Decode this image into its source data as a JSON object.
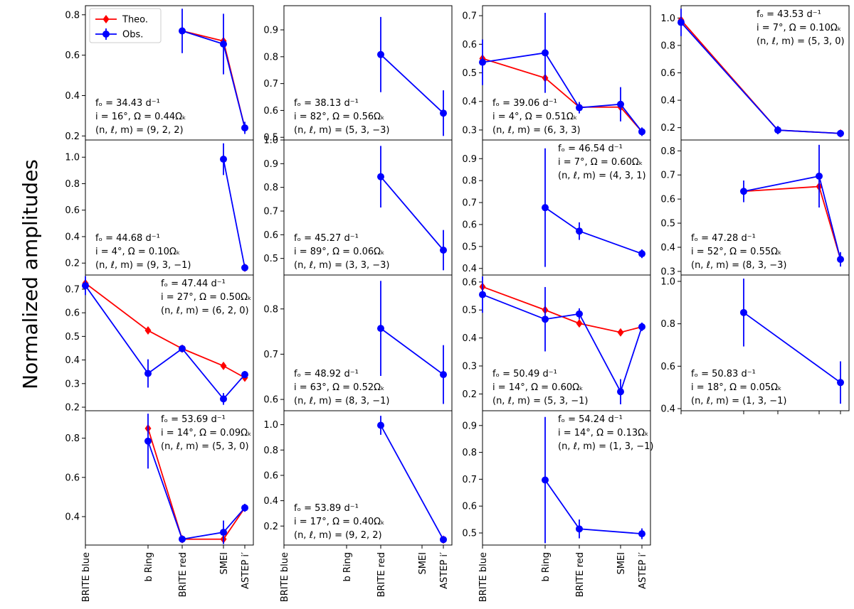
{
  "figure": {
    "ylabel": "Normalized amplitudes",
    "filters": [
      "BRITE blue",
      "b Ring",
      "BRITE red",
      "SMEI",
      "ASTEP i′"
    ],
    "legend": [
      {
        "label": "Theo.",
        "color": "#ff0000"
      },
      {
        "label": "Obs.",
        "color": "#0000ff"
      }
    ]
  },
  "chart_data": [
    {
      "type": "line",
      "annotation": [
        "fₒ = 34.43 d⁻¹",
        "i = 16°, Ω = 0.44Ωₖ",
        "(n, ℓ, m) = (9, 2, 2)"
      ],
      "ylim": [
        0.18,
        0.845
      ],
      "yticks": [
        0.2,
        0.4,
        0.6,
        0.8
      ],
      "ytick_labels": [
        "0.2",
        "0.4",
        "0.6",
        "0.8"
      ],
      "theo": [
        null,
        null,
        0.72,
        0.67,
        0.24
      ],
      "obs": [
        null,
        null,
        0.72,
        0.655,
        0.24
      ],
      "err": [
        null,
        null,
        0.11,
        0.15,
        0.03
      ]
    },
    {
      "type": "line",
      "annotation": [
        "fₒ = 38.13 d⁻¹",
        "i = 82°, Ω = 0.56Ωₖ",
        "(n, ℓ, m) = (5, 3, −3)"
      ],
      "ylim": [
        0.49,
        0.99
      ],
      "yticks": [
        0.5,
        0.6,
        0.7,
        0.8,
        0.9
      ],
      "ytick_labels": [
        "0.5",
        "0.6",
        "0.7",
        "0.8",
        "0.9"
      ],
      "theo": [
        null,
        null,
        null,
        null,
        null
      ],
      "obs": [
        null,
        null,
        0.808,
        null,
        0.59
      ],
      "err": [
        null,
        null,
        0.14,
        null,
        0.085
      ]
    },
    {
      "type": "line",
      "annotation": [
        "fₒ = 39.06 d⁻¹",
        "i = 4°, Ω = 0.51Ωₖ",
        "(n, ℓ, m) = (6, 3, 3)"
      ],
      "ylim": [
        0.265,
        0.735
      ],
      "yticks": [
        0.3,
        0.4,
        0.5,
        0.6,
        0.7
      ],
      "ytick_labels": [
        "0.3",
        "0.4",
        "0.5",
        "0.6",
        "0.7"
      ],
      "theo": [
        0.55,
        0.482,
        0.38,
        0.38,
        0.294
      ],
      "obs": [
        0.537,
        0.57,
        0.378,
        0.39,
        0.294
      ],
      "err": [
        0.08,
        0.14,
        0.02,
        0.06,
        0.015
      ]
    },
    {
      "type": "line",
      "annotation": [
        "fₒ = 43.53 d⁻¹",
        "i = 7°, Ω = 0.10Ωₖ",
        "(n, ℓ, m) = (5, 3, 0)"
      ],
      "ylim": [
        0.11,
        1.09
      ],
      "yticks": [
        0.2,
        0.4,
        0.6,
        0.8,
        1.0
      ],
      "ytick_labels": [
        "0.2",
        "0.4",
        "0.6",
        "0.8",
        "1.0"
      ],
      "theo": [
        0.985,
        null,
        0.182,
        null,
        0.158
      ],
      "obs": [
        0.968,
        null,
        0.182,
        null,
        0.158
      ],
      "err": [
        0.1,
        null,
        0.03,
        null,
        0.02
      ]
    },
    {
      "type": "line",
      "annotation": [
        "fₒ = 44.68 d⁻¹",
        "i = 4°, Ω = 0.10Ωₖ",
        "(n, ℓ, m) = (9, 3, −1)"
      ],
      "ylim": [
        0.11,
        1.13
      ],
      "yticks": [
        0.2,
        0.4,
        0.6,
        0.8,
        1.0
      ],
      "ytick_labels": [
        "0.2",
        "0.4",
        "0.6",
        "0.8",
        "1.0"
      ],
      "theo": [
        null,
        null,
        null,
        null,
        0.165
      ],
      "obs": [
        null,
        null,
        null,
        0.985,
        0.165
      ],
      "err": [
        null,
        null,
        null,
        0.12,
        0.02
      ]
    },
    {
      "type": "line",
      "annotation": [
        "fₒ = 45.27 d⁻¹",
        "i = 89°, Ω = 0.06Ωₖ",
        "(n, ℓ, m) = (3, 3, −3)"
      ],
      "ylim": [
        0.43,
        1.0
      ],
      "yticks": [
        0.5,
        0.6,
        0.7,
        0.8,
        0.9,
        1.0
      ],
      "ytick_labels": [
        "0.5",
        "0.6",
        "0.7",
        "0.8",
        "0.9",
        "1.0"
      ],
      "theo": [
        null,
        null,
        null,
        null,
        null
      ],
      "obs": [
        null,
        null,
        0.845,
        null,
        0.535
      ],
      "err": [
        null,
        null,
        0.13,
        null,
        0.085
      ]
    },
    {
      "type": "line",
      "annotation": [
        "fₒ = 46.54 d⁻¹",
        "i = 7°, Ω = 0.60Ωₖ",
        "(n, ℓ, m) = (4, 3, 1)"
      ],
      "ylim": [
        0.37,
        0.985
      ],
      "yticks": [
        0.4,
        0.5,
        0.6,
        0.7,
        0.8,
        0.9
      ],
      "ytick_labels": [
        "0.4",
        "0.5",
        "0.6",
        "0.7",
        "0.8",
        "0.9"
      ],
      "theo": [
        null,
        null,
        null,
        null,
        null
      ],
      "obs": [
        null,
        0.677,
        0.57,
        null,
        0.467
      ],
      "err": [
        null,
        0.27,
        0.04,
        null,
        0.02
      ]
    },
    {
      "type": "line",
      "annotation": [
        "fₒ = 47.28 d⁻¹",
        "i = 52°, Ω = 0.55Ωₖ",
        "(n, ℓ, m) = (8, 3, −3)"
      ],
      "ylim": [
        0.285,
        0.845
      ],
      "yticks": [
        0.3,
        0.4,
        0.5,
        0.6,
        0.7,
        0.8
      ],
      "ytick_labels": [
        "0.3",
        "0.4",
        "0.5",
        "0.6",
        "0.7",
        "0.8"
      ],
      "theo": [
        null,
        0.632,
        null,
        0.652,
        0.35
      ],
      "obs": [
        null,
        0.632,
        null,
        0.695,
        0.35
      ],
      "err": [
        null,
        0.045,
        null,
        0.13,
        0.03
      ]
    },
    {
      "type": "line",
      "annotation": [
        "fₒ = 47.44 d⁻¹",
        "i = 27°, Ω = 0.50Ωₖ",
        "(n, ℓ, m) = (6, 2, 0)"
      ],
      "ylim": [
        0.185,
        0.76
      ],
      "yticks": [
        0.2,
        0.3,
        0.4,
        0.5,
        0.6,
        0.7
      ],
      "ytick_labels": [
        "0.2",
        "0.3",
        "0.4",
        "0.5",
        "0.6",
        "0.7"
      ],
      "theo": [
        0.725,
        0.525,
        0.448,
        0.375,
        0.325
      ],
      "obs": [
        0.715,
        0.343,
        0.448,
        0.235,
        0.338
      ],
      "err": [
        0.04,
        0.06,
        0.015,
        0.025,
        0.015
      ]
    },
    {
      "type": "line",
      "annotation": [
        "fₒ = 48.92 d⁻¹",
        "i = 63°, Ω = 0.52Ωₖ",
        "(n, ℓ, m) = (8, 3, −1)"
      ],
      "ylim": [
        0.575,
        0.875
      ],
      "yticks": [
        0.6,
        0.7,
        0.8
      ],
      "ytick_labels": [
        "0.6",
        "0.7",
        "0.8"
      ],
      "theo": [
        null,
        null,
        null,
        null,
        null
      ],
      "obs": [
        null,
        null,
        0.757,
        null,
        0.655
      ],
      "err": [
        null,
        null,
        0.105,
        null,
        0.065
      ]
    },
    {
      "type": "line",
      "annotation": [
        "fₒ = 50.49 d⁻¹",
        "i = 14°, Ω = 0.60Ωₖ",
        "(n, ℓ, m) = (5, 3, −1)"
      ],
      "ylim": [
        0.14,
        0.625
      ],
      "yticks": [
        0.2,
        0.3,
        0.4,
        0.5,
        0.6
      ],
      "ytick_labels": [
        "0.2",
        "0.3",
        "0.4",
        "0.5",
        "0.6"
      ],
      "theo": [
        0.583,
        0.5,
        0.452,
        0.42,
        0.44
      ],
      "obs": [
        0.555,
        0.467,
        0.486,
        0.208,
        0.44
      ],
      "err": [
        0.065,
        0.115,
        0.02,
        0.045,
        0.015
      ]
    },
    {
      "type": "line",
      "annotation": [
        "fₒ = 50.83 d⁻¹",
        "i = 18°, Ω = 0.05Ωₖ",
        "(n, ℓ, m) = (1, 3, −1)"
      ],
      "ylim": [
        0.39,
        1.03
      ],
      "yticks": [
        0.4,
        0.6,
        0.8,
        1.0
      ],
      "ytick_labels": [
        "0.4",
        "0.6",
        "0.8",
        "1.0"
      ],
      "theo": [
        null,
        null,
        null,
        null,
        null
      ],
      "obs": [
        null,
        0.853,
        null,
        null,
        0.523
      ],
      "err": [
        null,
        0.16,
        null,
        null,
        0.1
      ]
    },
    {
      "type": "line",
      "annotation": [
        "fₒ = 53.69 d⁻¹",
        "i = 14°, Ω = 0.09Ωₖ",
        "(n, ℓ, m) = (5, 3, 0)"
      ],
      "ylim": [
        0.255,
        0.94
      ],
      "yticks": [
        0.4,
        0.6,
        0.8
      ],
      "ytick_labels": [
        "0.4",
        "0.6",
        "0.8"
      ],
      "theo": [
        null,
        0.85,
        0.285,
        0.285,
        0.445
      ],
      "obs": [
        null,
        0.785,
        0.285,
        0.32,
        0.445
      ],
      "err": [
        null,
        0.14,
        0.015,
        0.06,
        0.02
      ]
    },
    {
      "type": "line",
      "annotation": [
        "fₒ = 53.89 d⁻¹",
        "i = 17°, Ω = 0.40Ωₖ",
        "(n, ℓ, m) = (9, 2, 2)"
      ],
      "ylim": [
        0.05,
        1.11
      ],
      "yticks": [
        0.2,
        0.4,
        0.6,
        0.8,
        1.0
      ],
      "ytick_labels": [
        "0.2",
        "0.4",
        "0.6",
        "0.8",
        "1.0"
      ],
      "theo": [
        null,
        null,
        null,
        null,
        0.093
      ],
      "obs": [
        null,
        null,
        0.995,
        null,
        0.093
      ],
      "err": [
        null,
        null,
        0.075,
        null,
        0.02
      ]
    },
    {
      "type": "line",
      "annotation": [
        "fₒ = 54.24 d⁻¹",
        "i = 14°, Ω = 0.13Ωₖ",
        "(n, ℓ, m) = (1, 3, −1)"
      ],
      "ylim": [
        0.455,
        0.955
      ],
      "yticks": [
        0.5,
        0.6,
        0.7,
        0.8,
        0.9
      ],
      "ytick_labels": [
        "0.5",
        "0.6",
        "0.7",
        "0.8",
        "0.9"
      ],
      "theo": [
        null,
        null,
        null,
        null,
        null
      ],
      "obs": [
        null,
        0.697,
        0.515,
        null,
        0.497
      ],
      "err": [
        null,
        0.235,
        0.035,
        null,
        0.02
      ]
    }
  ]
}
